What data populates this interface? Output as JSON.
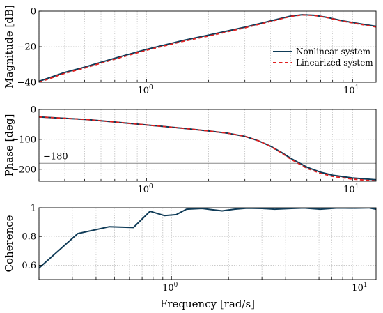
{
  "colors": {
    "nonlinear": "#0f3b57",
    "linearized": "#e02020",
    "grid": "#b8b8b8",
    "reference": "#8a8a8a"
  },
  "chart_data": [
    {
      "type": "line",
      "xscale": "log",
      "xlim": [
        0.3,
        13
      ],
      "ylim": [
        -40,
        0
      ],
      "grid": true,
      "legend_placement": "bottom-right",
      "ylabel": "Magnitude [dB]",
      "xlabel": "",
      "xticks": [
        {
          "value": 1,
          "label": "10^0"
        },
        {
          "value": 10,
          "label": "10^1"
        }
      ],
      "yticks": [
        {
          "value": 0,
          "label": "0"
        },
        {
          "value": -20,
          "label": "-20"
        },
        {
          "value": -40,
          "label": "-40"
        }
      ],
      "series": [
        {
          "name": "Nonlinear system",
          "style": "solid",
          "x": [
            0.3,
            0.4,
            0.5,
            0.7,
            1.0,
            1.5,
            2.0,
            3.0,
            4.0,
            5.0,
            5.7,
            6.5,
            7.5,
            9.0,
            11.0,
            13.0
          ],
          "y": [
            -39.5,
            -34.5,
            -31.5,
            -26.5,
            -21.5,
            -16.5,
            -13.5,
            -9.0,
            -5.5,
            -2.8,
            -2.0,
            -2.3,
            -3.5,
            -5.5,
            -7.2,
            -8.5
          ]
        },
        {
          "name": "Linearized system",
          "style": "dashed",
          "x": [
            0.3,
            0.4,
            0.5,
            0.7,
            1.0,
            1.5,
            2.0,
            3.0,
            4.0,
            5.0,
            5.7,
            6.5,
            7.5,
            9.0,
            11.0,
            13.0
          ],
          "y": [
            -40.0,
            -35.0,
            -32.0,
            -27.0,
            -22.0,
            -17.0,
            -14.0,
            -9.4,
            -5.8,
            -3.0,
            -2.1,
            -2.4,
            -3.6,
            -5.7,
            -7.5,
            -8.9
          ]
        }
      ]
    },
    {
      "type": "line",
      "xscale": "log",
      "xlim": [
        0.3,
        13
      ],
      "ylim": [
        -240,
        0
      ],
      "grid": true,
      "ylabel": "Phase [deg]",
      "xlabel": "",
      "xticks": [
        {
          "value": 1,
          "label": "10^0"
        },
        {
          "value": 10,
          "label": "10^1"
        }
      ],
      "yticks": [
        {
          "value": 0,
          "label": "0"
        },
        {
          "value": -100,
          "label": "-100"
        },
        {
          "value": -200,
          "label": "-200"
        }
      ],
      "reference_line": {
        "y": -180,
        "label": "−180"
      },
      "series": [
        {
          "name": "Nonlinear system",
          "style": "solid",
          "x": [
            0.3,
            0.5,
            0.7,
            1.0,
            1.5,
            2.0,
            2.5,
            3.0,
            3.5,
            4.0,
            4.5,
            5.0,
            6.0,
            7.0,
            8.0,
            10.0,
            13.0
          ],
          "y": [
            -25,
            -33,
            -42,
            -52,
            -63,
            -72,
            -80,
            -90,
            -105,
            -123,
            -143,
            -163,
            -193,
            -210,
            -220,
            -229,
            -235
          ]
        },
        {
          "name": "Linearized system",
          "style": "dashed",
          "x": [
            0.3,
            0.5,
            0.7,
            1.0,
            1.5,
            2.0,
            2.5,
            3.0,
            3.5,
            4.0,
            4.5,
            5.0,
            6.0,
            7.0,
            8.0,
            10.0,
            13.0
          ],
          "y": [
            -25,
            -33,
            -42,
            -52,
            -63,
            -72,
            -80,
            -90,
            -105,
            -124,
            -145,
            -166,
            -197,
            -214,
            -224,
            -233,
            -239
          ]
        }
      ]
    },
    {
      "type": "line",
      "xscale": "log",
      "xlim": [
        0.2,
        12
      ],
      "ylim": [
        0.5,
        1.0
      ],
      "grid": true,
      "ylabel": "Coherence",
      "xlabel": "Frequency [rad/s]",
      "xticks": [
        {
          "value": 1,
          "label": "10^0"
        },
        {
          "value": 10,
          "label": "10^1"
        }
      ],
      "yticks": [
        {
          "value": 1,
          "label": "1"
        },
        {
          "value": 0.8,
          "label": "0.8"
        },
        {
          "value": 0.6,
          "label": "0.6"
        }
      ],
      "series": [
        {
          "name": "Nonlinear system",
          "style": "solid",
          "x": [
            0.2,
            0.32,
            0.47,
            0.63,
            0.77,
            0.92,
            1.06,
            1.2,
            1.45,
            1.6,
            1.85,
            2.15,
            2.5,
            3.0,
            3.5,
            4.3,
            5.0,
            6.1,
            7.5,
            9.0,
            11.0,
            12.0
          ],
          "y": [
            0.58,
            0.82,
            0.868,
            0.862,
            0.975,
            0.945,
            0.952,
            0.99,
            0.995,
            0.988,
            0.978,
            0.99,
            0.997,
            0.995,
            0.99,
            0.995,
            0.998,
            0.99,
            0.998,
            0.997,
            0.999,
            0.99
          ]
        }
      ]
    }
  ]
}
